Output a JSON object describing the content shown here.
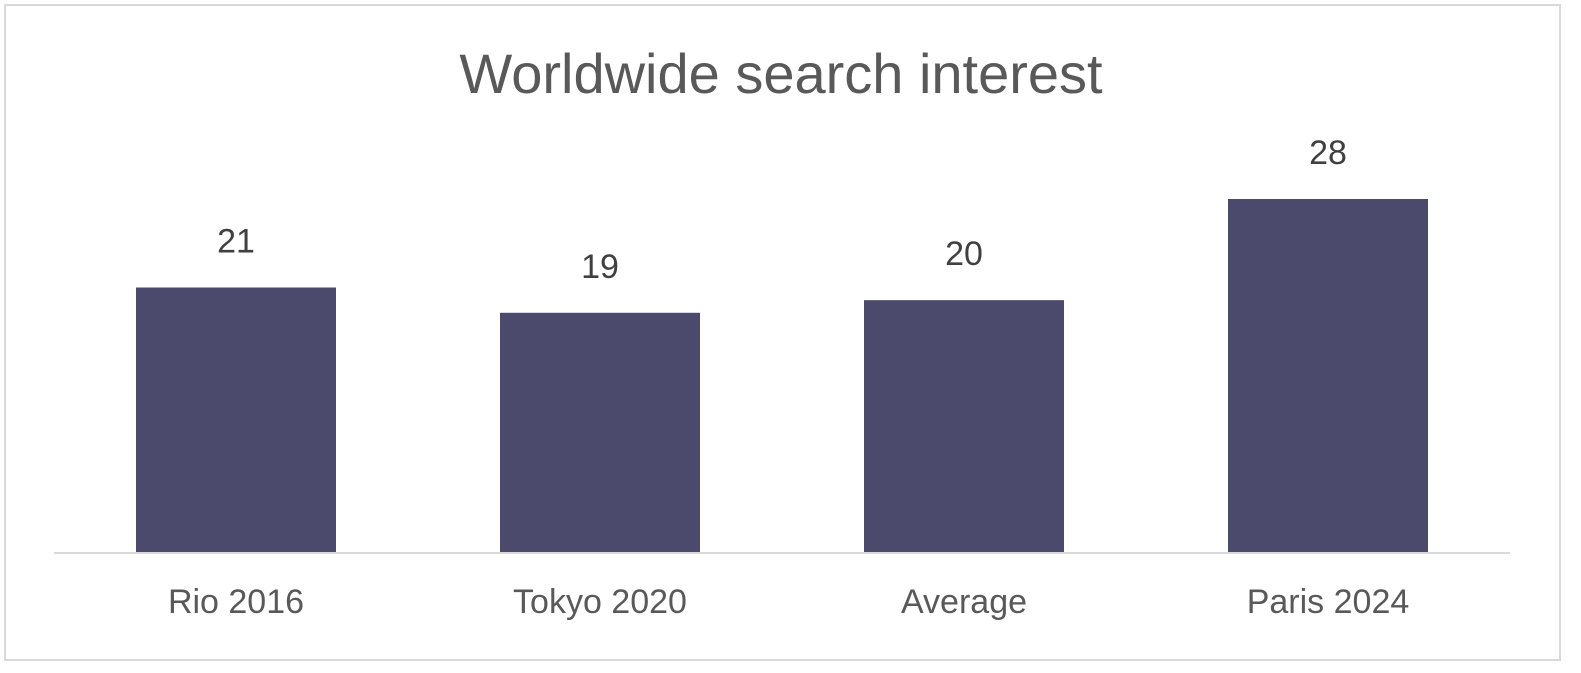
{
  "chart_data": {
    "type": "bar",
    "title": "Worldwide search interest",
    "categories": [
      "Rio 2016",
      "Tokyo 2020",
      "Average",
      "Paris 2024"
    ],
    "values": [
      21,
      19,
      20,
      28
    ],
    "color": "#4b4a6d",
    "data_labels": true
  }
}
